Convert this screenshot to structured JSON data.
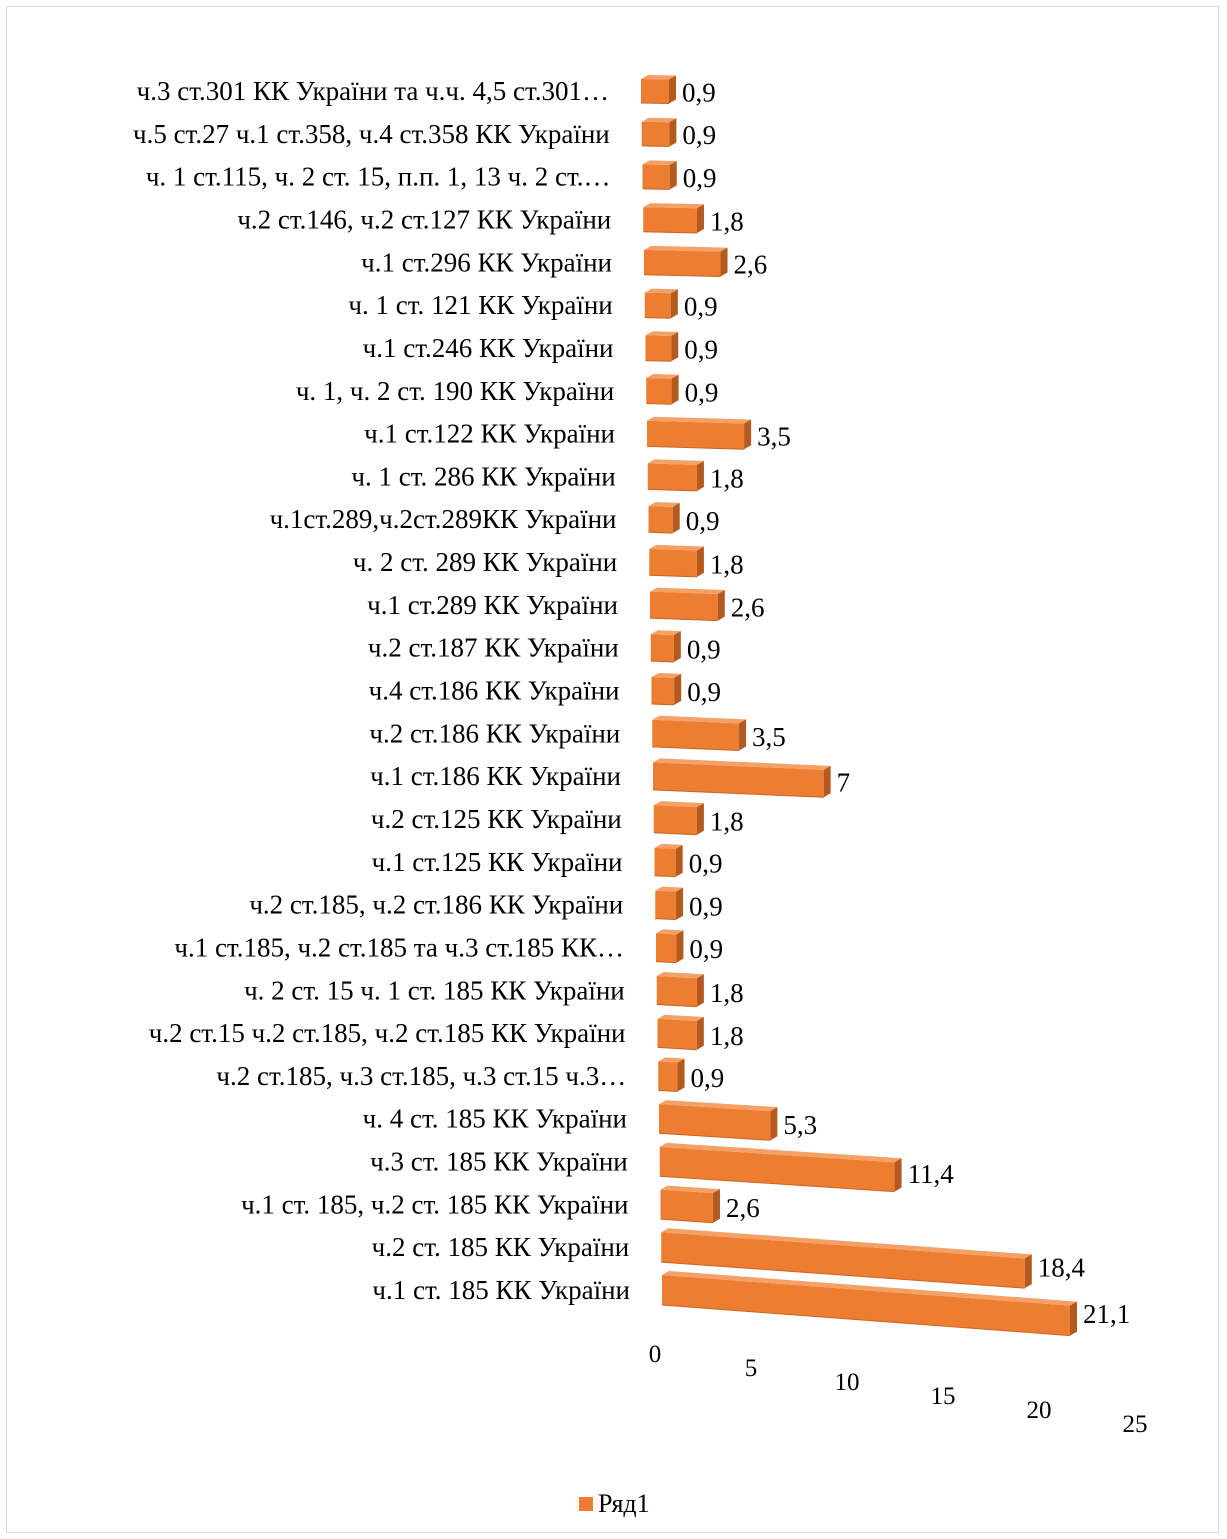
{
  "chart_data": {
    "type": "bar",
    "orientation": "horizontal",
    "style": "3d",
    "categories": [
      "ч.3 ст.301 КК України та ч.ч. 4,5 ст.301…",
      "ч.5 ст.27 ч.1 ст.358, ч.4 ст.358 КК України",
      "ч. 1 ст.115, ч. 2 ст. 15, п.п. 1, 13 ч. 2 ст.…",
      "ч.2 ст.146, ч.2 ст.127 КК України",
      "ч.1 ст.296 КК України",
      "ч. 1 ст. 121 КК України",
      "ч.1 ст.246 КК України",
      "ч. 1, ч. 2 ст. 190 КК України",
      "ч.1 ст.122 КК України",
      "ч. 1 ст. 286 КК України",
      "ч.1ст.289,ч.2ст.289КК  України",
      "ч. 2 ст. 289 КК України",
      "ч.1 ст.289 КК України",
      "ч.2 ст.187 КК України",
      "ч.4 ст.186  КК України",
      "ч.2 ст.186  КК України",
      "ч.1 ст.186 КК України",
      "ч.2 ст.125 КК України",
      "ч.1 ст.125 КК України",
      "ч.2 ст.185, ч.2 ст.186  КК України",
      "ч.1 ст.185, ч.2 ст.185 та ч.3 ст.185 КК…",
      "ч. 2 ст. 15 ч. 1 ст. 185 КК України",
      "ч.2 ст.15 ч.2 ст.185, ч.2 ст.185 КК України",
      "ч.2 ст.185, ч.3 ст.185, ч.3 ст.15 ч.3…",
      "ч. 4 ст. 185 КК України",
      "ч.3 ст. 185 КК України",
      "ч.1 ст. 185, ч.2 ст. 185 КК України",
      "ч.2 ст. 185 КК України",
      "ч.1 ст. 185 КК України"
    ],
    "value_labels": [
      "0,9",
      "0,9",
      "0,9",
      "1,8",
      "2,6",
      "0,9",
      "0,9",
      "0,9",
      "3,5",
      "1,8",
      "0,9",
      "1,8",
      "2,6",
      "0,9",
      "0,9",
      "3,5",
      "7",
      "1,8",
      "0,9",
      "0,9",
      "0,9",
      "1,8",
      "1,8",
      "0,9",
      "5,3",
      "11,4",
      "2,6",
      "18,4",
      "21,1"
    ],
    "series": [
      {
        "name": "Ряд1",
        "values": [
          0.9,
          0.9,
          0.9,
          1.8,
          2.6,
          0.9,
          0.9,
          0.9,
          3.5,
          1.8,
          0.9,
          1.8,
          2.6,
          0.9,
          0.9,
          3.5,
          7,
          1.8,
          0.9,
          0.9,
          0.9,
          1.8,
          1.8,
          0.9,
          5.3,
          11.4,
          2.6,
          18.4,
          21.1
        ]
      }
    ],
    "xlim": [
      0,
      25
    ],
    "x_ticks": [
      "0",
      "5",
      "10",
      "15",
      "20",
      "25"
    ],
    "color": "#ED7D31",
    "legend": {
      "position": "bottom",
      "entries": [
        "Ряд1"
      ]
    }
  }
}
